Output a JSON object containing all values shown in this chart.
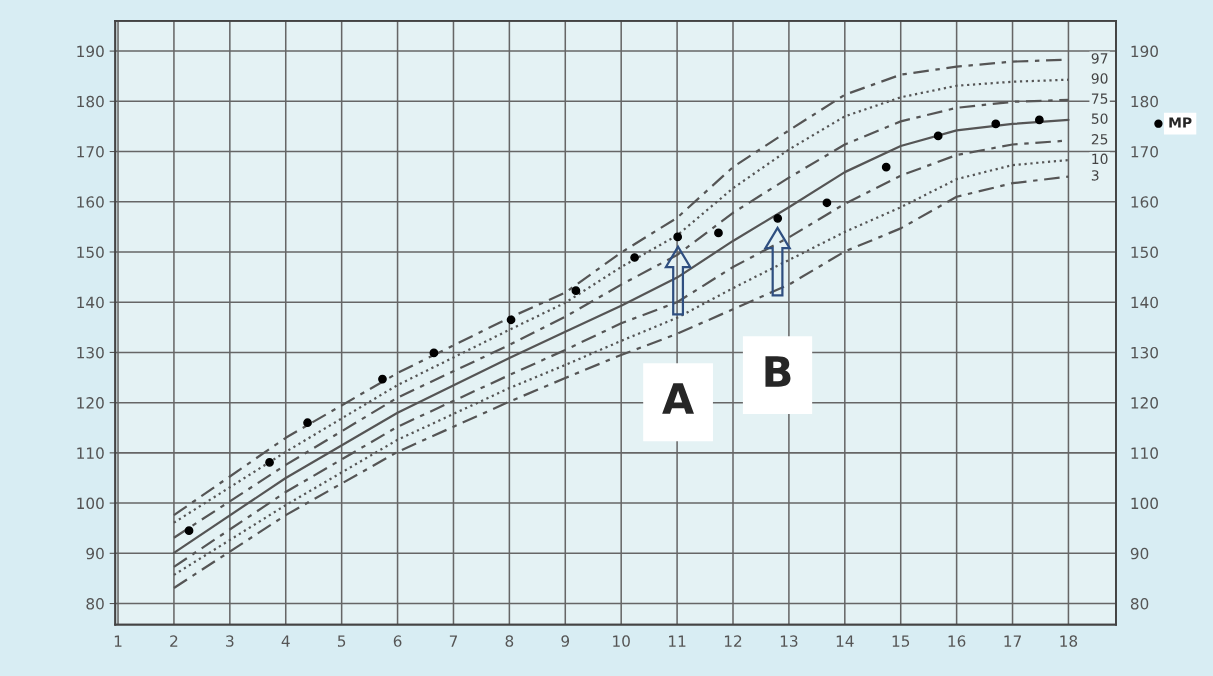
{
  "chart_data": {
    "type": "line",
    "x": [
      2,
      4,
      6,
      8,
      9,
      10,
      11,
      12,
      13,
      14,
      15,
      16,
      17,
      18
    ],
    "series": [
      {
        "name": "97",
        "color": "#555555",
        "line_style": "dashed",
        "values": [
          97.6,
          113.0,
          125.9,
          136.9,
          141.9,
          149.9,
          156.8,
          166.9,
          174.2,
          181.3,
          185.3,
          186.9,
          187.9,
          188.3
        ]
      },
      {
        "name": "90",
        "color": "#555555",
        "line_style": "dotted",
        "values": [
          96.1,
          110.2,
          123.5,
          134.5,
          139.9,
          147.0,
          153.3,
          162.7,
          170.4,
          177.0,
          180.8,
          183.1,
          183.9,
          184.3
        ]
      },
      {
        "name": "75",
        "color": "#555555",
        "line_style": "dashed",
        "values": [
          93.1,
          107.6,
          121.0,
          131.5,
          137.1,
          143.5,
          149.4,
          157.8,
          164.8,
          171.4,
          176.0,
          178.7,
          179.9,
          180.3
        ]
      },
      {
        "name": "50",
        "color": "#555555",
        "line_style": "solid",
        "values": [
          90.1,
          105.0,
          118.0,
          128.9,
          134.1,
          139.3,
          144.9,
          152.2,
          158.9,
          165.9,
          171.1,
          174.2,
          175.5,
          176.3
        ]
      },
      {
        "name": "25",
        "color": "#555555",
        "line_style": "dashed",
        "values": [
          87.3,
          102.2,
          115.2,
          125.5,
          130.5,
          135.8,
          140.0,
          147.0,
          152.9,
          159.6,
          165.2,
          169.3,
          171.4,
          172.2
        ]
      },
      {
        "name": "10",
        "color": "#555555",
        "line_style": "dotted",
        "values": [
          85.7,
          99.6,
          112.6,
          122.9,
          127.5,
          132.3,
          136.9,
          142.8,
          148.4,
          154.0,
          158.9,
          164.5,
          167.3,
          168.3
        ]
      },
      {
        "name": "3",
        "color": "#555555",
        "line_style": "dashed",
        "values": [
          83.1,
          97.6,
          110.2,
          120.2,
          124.9,
          129.5,
          133.7,
          138.6,
          143.5,
          150.1,
          154.7,
          161.0,
          163.7,
          165.0
        ]
      },
      {
        "type": "scatter",
        "color": "#000000",
        "marker": "circle",
        "x": [
          2.27,
          3.71,
          4.39,
          5.73,
          6.65,
          8.03,
          9.19,
          10.24,
          11.01,
          11.74,
          12.8,
          13.68,
          14.74,
          15.67,
          16.7,
          17.48
        ],
        "values": [
          94.5,
          108.1,
          116.0,
          124.7,
          129.9,
          136.5,
          142.3,
          148.9,
          153.0,
          153.8,
          156.7,
          159.8,
          166.9,
          173.1,
          175.5,
          176.3
        ]
      }
    ],
    "xlim": [
      0.95,
      18.85
    ],
    "xticks": [
      1,
      2,
      3,
      4,
      5,
      6,
      7,
      8,
      9,
      10,
      11,
      12,
      13,
      14,
      15,
      16,
      17,
      18
    ],
    "ylim": [
      75.8,
      196
    ],
    "yticks": [
      80,
      90,
      100,
      110,
      120,
      130,
      140,
      150,
      160,
      170,
      180,
      190
    ],
    "y2lim": [
      75.8,
      196
    ],
    "y2ticks": [
      80,
      90,
      100,
      110,
      120,
      130,
      140,
      150,
      160,
      170,
      180,
      190
    ],
    "grid": true,
    "legend": false,
    "annotations": [
      "A",
      "B",
      "MP"
    ]
  }
}
